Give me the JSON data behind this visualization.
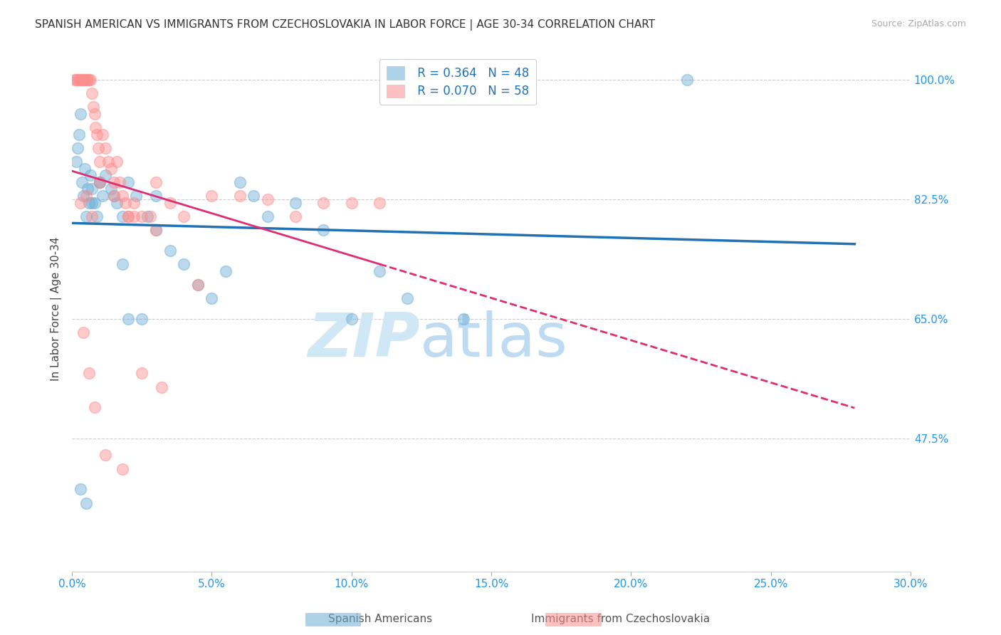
{
  "title": "SPANISH AMERICAN VS IMMIGRANTS FROM CZECHOSLOVAKIA IN LABOR FORCE | AGE 30-34 CORRELATION CHART",
  "source": "Source: ZipAtlas.com",
  "ylabel": "In Labor Force | Age 30-34",
  "xmin": 0.0,
  "xmax": 30.0,
  "ymin": 28.0,
  "ymax": 105.0,
  "legend_blue_r": "R = 0.364",
  "legend_blue_n": "N = 48",
  "legend_pink_r": "R = 0.070",
  "legend_pink_n": "N = 58",
  "label_blue": "Spanish Americans",
  "label_pink": "Immigrants from Czechoslovakia",
  "blue_color": "#6baed6",
  "pink_color": "#fc8d8d",
  "trend_blue_color": "#2171b5",
  "trend_pink_color": "#de2d73",
  "blue_x": [
    0.15,
    0.2,
    0.25,
    0.3,
    0.35,
    0.4,
    0.45,
    0.5,
    0.55,
    0.6,
    0.65,
    0.7,
    0.8,
    0.9,
    1.0,
    1.1,
    1.2,
    1.4,
    1.6,
    1.8,
    2.0,
    2.3,
    2.7,
    3.0,
    3.5,
    4.0,
    4.5,
    5.0,
    5.5,
    6.0,
    6.5,
    7.0,
    8.0,
    9.0,
    10.0,
    11.0,
    12.0,
    14.0,
    0.3,
    0.5,
    0.7,
    1.0,
    1.5,
    2.0,
    3.0,
    22.0,
    1.8,
    2.5
  ],
  "blue_y": [
    88.0,
    90.0,
    92.0,
    95.0,
    85.0,
    83.0,
    87.0,
    80.0,
    84.0,
    82.0,
    86.0,
    84.0,
    82.0,
    80.0,
    85.0,
    83.0,
    86.0,
    84.0,
    82.0,
    80.0,
    85.0,
    83.0,
    80.0,
    78.0,
    75.0,
    73.0,
    70.0,
    68.0,
    72.0,
    85.0,
    83.0,
    80.0,
    82.0,
    78.0,
    65.0,
    72.0,
    68.0,
    65.0,
    40.0,
    38.0,
    82.0,
    85.0,
    83.0,
    65.0,
    83.0,
    100.0,
    73.0,
    65.0
  ],
  "pink_x": [
    0.1,
    0.15,
    0.2,
    0.25,
    0.3,
    0.35,
    0.4,
    0.45,
    0.5,
    0.55,
    0.6,
    0.65,
    0.7,
    0.75,
    0.8,
    0.85,
    0.9,
    0.95,
    1.0,
    1.1,
    1.2,
    1.3,
    1.4,
    1.5,
    1.6,
    1.7,
    1.8,
    1.9,
    2.0,
    2.2,
    2.5,
    2.8,
    3.0,
    3.5,
    4.0,
    5.0,
    6.0,
    7.0,
    8.0,
    9.0,
    10.0,
    11.0,
    0.3,
    0.5,
    0.7,
    1.0,
    1.5,
    2.0,
    3.0,
    2.2,
    0.4,
    0.6,
    0.8,
    1.2,
    1.8,
    2.5,
    4.5,
    3.2
  ],
  "pink_y": [
    100.0,
    100.0,
    100.0,
    100.0,
    100.0,
    100.0,
    100.0,
    100.0,
    100.0,
    100.0,
    100.0,
    100.0,
    98.0,
    96.0,
    95.0,
    93.0,
    92.0,
    90.0,
    88.0,
    92.0,
    90.0,
    88.0,
    87.0,
    85.0,
    88.0,
    85.0,
    83.0,
    82.0,
    80.0,
    82.0,
    80.0,
    80.0,
    85.0,
    82.0,
    80.0,
    83.0,
    83.0,
    82.5,
    80.0,
    82.0,
    82.0,
    82.0,
    82.0,
    83.0,
    80.0,
    85.0,
    83.0,
    80.0,
    78.0,
    80.0,
    63.0,
    57.0,
    52.0,
    45.0,
    43.0,
    57.0,
    70.0,
    55.0
  ],
  "watermark_zip": "ZIP",
  "watermark_atlas": "atlas",
  "watermark_color": "#d0e8f5",
  "background_color": "#ffffff"
}
